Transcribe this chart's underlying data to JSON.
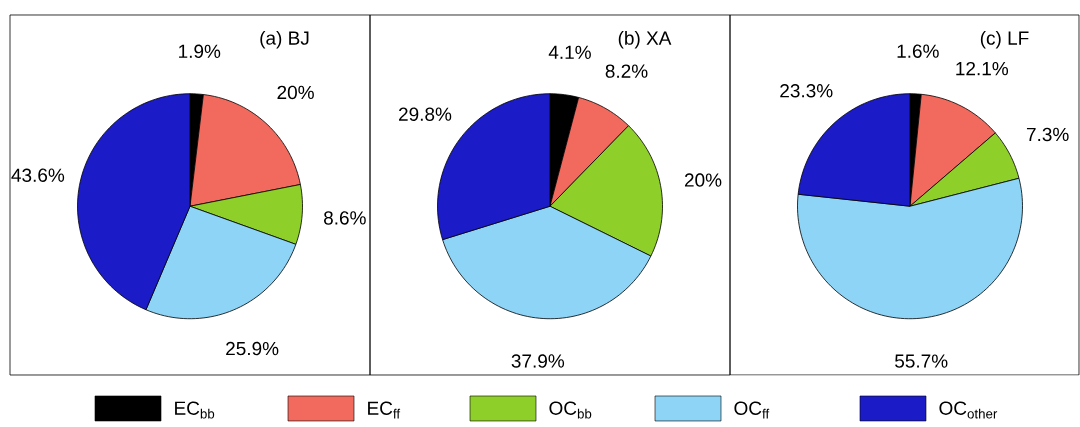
{
  "chart_data": [
    {
      "type": "pie",
      "title": "(a) BJ",
      "categories": [
        "EC$_{bb}$",
        "EC$_{ff}$",
        "OC$_{bb}$",
        "OC$_{ff}$",
        "OC$_{other}$"
      ],
      "values": [
        1.9,
        20,
        8.6,
        25.9,
        43.6
      ],
      "value_labels": [
        "1.9%",
        "20%",
        "8.6%",
        "25.9%",
        "43.6%"
      ],
      "colors": [
        "#000000",
        "#f26a5e",
        "#8fcf2a",
        "#8dd4f6",
        "#1b1bc8"
      ],
      "legend": "bottom"
    },
    {
      "type": "pie",
      "title": "(b) XA",
      "categories": [
        null,
        null,
        null,
        null,
        null
      ],
      "values": [
        4.1,
        8.2,
        20,
        37.9,
        29.8
      ],
      "value_labels": [
        "4.1%",
        "8.2%",
        "20%",
        "37.9%",
        "29.8%"
      ],
      "colors": [
        "#000000",
        "#f26a5e",
        "#8fcf2a",
        "#8dd4f6",
        "#1b1bc8"
      ]
    },
    {
      "type": "pie",
      "title": "(c) LF",
      "categories": [
        null,
        null,
        null,
        null,
        null
      ],
      "values": [
        1.6,
        12.1,
        7.3,
        55.7,
        23.3
      ],
      "value_labels": [
        "1.6%",
        "12.1%",
        "7.3%",
        "55.7%",
        "23.3%"
      ],
      "colors": [
        "#000000",
        "#f26a5e",
        "#8fcf2a",
        "#8dd4f6",
        "#1b1bc8"
      ]
    }
  ]
}
